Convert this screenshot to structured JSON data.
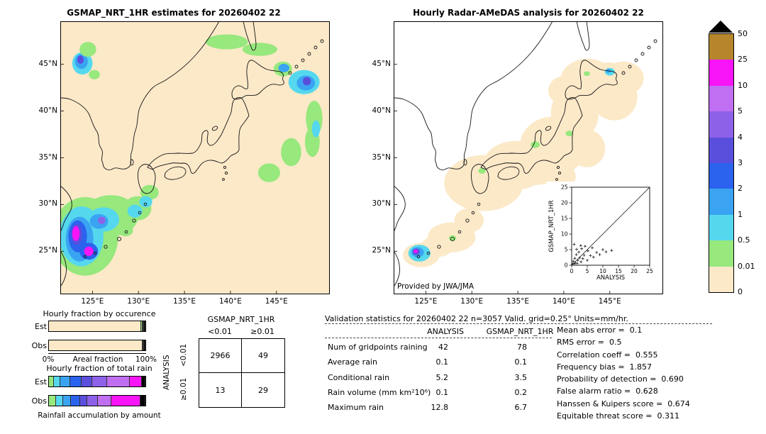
{
  "chart_data": [
    {
      "name": "gsmap_map",
      "type": "heatmap",
      "title": "GSMAP_NRT_1HR estimates for 20260402 22",
      "units": "mm/hr",
      "lon_range": [
        121.5,
        150.8
      ],
      "lat_range": [
        20.4,
        49.6
      ],
      "lat_ticks": [
        "45°N",
        "40°N",
        "35°N",
        "30°N",
        "25°N"
      ],
      "lat_tick_values": [
        45,
        40,
        35,
        30,
        25
      ],
      "lon_ticks": [
        "125°E",
        "130°E",
        "135°E",
        "140°E",
        "145°E"
      ],
      "lon_tick_values": [
        125,
        130,
        135,
        140,
        145
      ],
      "background_value_color": "#fce9c8",
      "cell_format": [
        "lon_deg",
        "lat_deg",
        "rx_deg",
        "ry_deg",
        "value_mm_hr"
      ],
      "cells": [
        [
          124.2,
          26.6,
          3.6,
          4.2,
          0.2
        ],
        [
          127.0,
          28.8,
          3.0,
          2.2,
          0.2
        ],
        [
          129.9,
          29.6,
          1.5,
          1.3,
          0.2
        ],
        [
          131.2,
          31.3,
          1.0,
          0.8,
          0.2
        ],
        [
          128.6,
          27.2,
          0.8,
          0.6,
          0.2
        ],
        [
          130.8,
          30.3,
          0.7,
          0.6,
          0.7
        ],
        [
          123.8,
          26.6,
          2.4,
          3.2,
          0.7
        ],
        [
          126.2,
          28.4,
          1.7,
          1.3,
          0.7
        ],
        [
          129.6,
          29.3,
          0.8,
          0.7,
          0.7
        ],
        [
          123.6,
          26.3,
          1.5,
          2.4,
          1.5
        ],
        [
          125.7,
          28.2,
          1.0,
          0.8,
          1.5
        ],
        [
          123.4,
          26.6,
          1.0,
          1.7,
          2.5
        ],
        [
          123.3,
          26.8,
          0.6,
          1.1,
          3.5
        ],
        [
          123.2,
          26.9,
          0.4,
          0.8,
          15
        ],
        [
          124.6,
          25.0,
          1.0,
          0.9,
          2.5
        ],
        [
          124.6,
          25.0,
          0.5,
          0.5,
          15
        ],
        [
          126.0,
          28.3,
          0.4,
          0.4,
          4.5
        ],
        [
          123.9,
          45.1,
          1.1,
          1.2,
          0.7
        ],
        [
          123.8,
          45.3,
          0.7,
          0.8,
          1.5
        ],
        [
          123.7,
          45.5,
          0.35,
          0.45,
          3.5
        ],
        [
          125.2,
          43.9,
          0.6,
          0.5,
          0.2
        ],
        [
          124.5,
          46.6,
          0.9,
          0.8,
          0.2
        ],
        [
          139.6,
          47.4,
          2.3,
          0.8,
          0.05
        ],
        [
          143.2,
          46.6,
          1.9,
          0.7,
          0.2
        ],
        [
          145.7,
          44.5,
          1.0,
          0.8,
          0.2
        ],
        [
          145.8,
          44.6,
          0.6,
          0.45,
          1.5
        ],
        [
          148.0,
          43.1,
          1.7,
          1.3,
          0.7
        ],
        [
          148.2,
          43.0,
          1.0,
          0.8,
          1.5
        ],
        [
          148.3,
          43.2,
          0.45,
          0.45,
          3.5
        ],
        [
          149.1,
          39.2,
          0.9,
          1.9,
          0.2
        ],
        [
          148.9,
          36.7,
          0.8,
          1.6,
          0.2
        ],
        [
          149.3,
          38.1,
          0.45,
          0.9,
          0.7
        ],
        [
          146.6,
          35.6,
          1.1,
          1.5,
          0.05
        ],
        [
          144.2,
          33.4,
          1.2,
          1.0,
          0.05
        ]
      ]
    },
    {
      "name": "radar_map",
      "type": "heatmap",
      "title": "Hourly Radar-AMeDAS analysis for 20260402 22",
      "credit": "Provided by JWA/JMA",
      "units": "mm/hr",
      "lon_range": [
        121.5,
        150.8
      ],
      "lat_range": [
        20.4,
        49.6
      ],
      "lat_ticks": [
        "45°N",
        "40°N",
        "35°N",
        "30°N",
        "25°N"
      ],
      "lat_tick_values": [
        45,
        40,
        35,
        30,
        25
      ],
      "lon_ticks": [
        "125°E",
        "130°E",
        "135°E",
        "140°E",
        "145°E"
      ],
      "lon_tick_values": [
        125,
        130,
        135,
        140,
        145
      ],
      "cell_format": [
        "lon_deg",
        "lat_deg",
        "rx_deg",
        "ry_deg",
        "value_mm_hr"
      ],
      "cells": [
        [
          131.3,
          32.3,
          4.3,
          3.0,
          0.005
        ],
        [
          134.8,
          34.2,
          3.6,
          2.6,
          0.005
        ],
        [
          138.8,
          36.2,
          3.6,
          3.2,
          0.005
        ],
        [
          141.2,
          39.8,
          2.6,
          3.0,
          0.005
        ],
        [
          142.6,
          43.2,
          3.0,
          2.4,
          0.005
        ],
        [
          140.3,
          42.2,
          2.0,
          1.6,
          0.005
        ],
        [
          127.8,
          26.5,
          2.6,
          1.6,
          0.005
        ],
        [
          124.5,
          24.6,
          2.0,
          1.3,
          0.005
        ],
        [
          129.7,
          28.3,
          1.6,
          1.3,
          0.005
        ],
        [
          137.0,
          33.9,
          2.6,
          1.8,
          0.005
        ],
        [
          132.9,
          33.0,
          2.8,
          1.9,
          0.005
        ],
        [
          144.9,
          43.6,
          2.2,
          1.6,
          0.005
        ],
        [
          126.2,
          25.5,
          1.8,
          1.1,
          0.005
        ],
        [
          145.5,
          41.5,
          2.5,
          2.5,
          0.005
        ],
        [
          146.5,
          43.5,
          2.2,
          1.8,
          0.005
        ],
        [
          142.5,
          36.0,
          2.0,
          2.0,
          0.005
        ],
        [
          139.5,
          33.0,
          1.8,
          1.5,
          0.005
        ],
        [
          124.3,
          24.8,
          1.2,
          0.9,
          0.7
        ],
        [
          124.1,
          24.9,
          0.7,
          0.55,
          1.5
        ],
        [
          123.95,
          24.95,
          0.4,
          0.35,
          3.5
        ],
        [
          123.9,
          25.0,
          0.22,
          0.2,
          15
        ],
        [
          127.9,
          26.4,
          0.4,
          0.3,
          0.2
        ],
        [
          131.1,
          33.6,
          0.4,
          0.3,
          0.2
        ],
        [
          136.9,
          36.4,
          0.5,
          0.35,
          0.2
        ],
        [
          145.0,
          44.2,
          0.55,
          0.4,
          0.7
        ],
        [
          144.85,
          44.3,
          0.28,
          0.22,
          1.5
        ],
        [
          140.6,
          37.6,
          0.4,
          0.3,
          0.2
        ],
        [
          142.5,
          44.0,
          0.35,
          0.25,
          0.2
        ]
      ]
    },
    {
      "name": "colorbar",
      "type": "scale",
      "units": "mm/hr",
      "thresholds": [
        0,
        0.01,
        0.5,
        1,
        2,
        3,
        4,
        5,
        10,
        25,
        50
      ],
      "colors": [
        "#fce9c8",
        "#97e87d",
        "#55d8ee",
        "#3aa4f2",
        "#2b62ee",
        "#5a4fdd",
        "#8e62e8",
        "#c06ef2",
        "#f714f7",
        "#b5862c",
        "#000000"
      ],
      "tick_labels_top_to_bottom": [
        "50",
        "25",
        "10",
        "5",
        "4",
        "3",
        "2",
        "1",
        "0.5",
        "0.01",
        "0"
      ],
      "overflow_color": "#000000"
    },
    {
      "name": "occurrence",
      "type": "bar",
      "stacked": true,
      "orientation": "horizontal",
      "title": "Hourly fraction by occurence",
      "categories": [
        "Est",
        "Obs"
      ],
      "xlabel": "Areal fraction",
      "xlim": [
        "0%",
        "100%"
      ],
      "segment_format": {
        "v": "class_value_mm_hr",
        "f": "fraction"
      },
      "series": [
        {
          "name": "Est",
          "segments": [
            {
              "v": 0.005,
              "f": 0.956
            },
            {
              "v": 0.2,
              "f": 0.012
            },
            {
              "v": 0.7,
              "f": 0.008
            },
            {
              "v": 1.5,
              "f": 0.006
            },
            {
              "v": 2.5,
              "f": 0.005
            },
            {
              "v": 60,
              "f": 0.013
            }
          ]
        },
        {
          "name": "Obs",
          "segments": [
            {
              "v": 0.005,
              "f": 0.968
            },
            {
              "v": 0.2,
              "f": 0.01
            },
            {
              "v": 0.7,
              "f": 0.005
            },
            {
              "v": 2.5,
              "f": 0.004
            },
            {
              "v": 60,
              "f": 0.013
            }
          ]
        }
      ]
    },
    {
      "name": "total_rain",
      "type": "bar",
      "stacked": true,
      "orientation": "horizontal",
      "title": "Hourly fraction of total rain",
      "footer": "Rainfall accumulation by amount",
      "categories": [
        "Est",
        "Obs"
      ],
      "series": [
        {
          "name": "Est",
          "segments": [
            {
              "v": 0.2,
              "f": 0.05
            },
            {
              "v": 0.7,
              "f": 0.07
            },
            {
              "v": 1.5,
              "f": 0.1
            },
            {
              "v": 2.5,
              "f": 0.12
            },
            {
              "v": 3.5,
              "f": 0.11
            },
            {
              "v": 4.5,
              "f": 0.15
            },
            {
              "v": 7,
              "f": 0.24
            },
            {
              "v": 15,
              "f": 0.12
            },
            {
              "v": 60,
              "f": 0.04
            }
          ]
        },
        {
          "name": "Obs",
          "segments": [
            {
              "v": 0.2,
              "f": 0.07
            },
            {
              "v": 0.7,
              "f": 0.08
            },
            {
              "v": 1.5,
              "f": 0.08
            },
            {
              "v": 2.5,
              "f": 0.09
            },
            {
              "v": 3.5,
              "f": 0.08
            },
            {
              "v": 4.5,
              "f": 0.11
            },
            {
              "v": 7,
              "f": 0.14
            },
            {
              "v": 15,
              "f": 0.3
            },
            {
              "v": 60,
              "f": 0.05
            }
          ]
        }
      ]
    },
    {
      "name": "contingency",
      "type": "table",
      "title": "GSMAP_NRT_1HR",
      "row_axis": "ANALYSIS",
      "col_labels": [
        "<0.01",
        "≥0.01"
      ],
      "row_labels": [
        "<0.01",
        "≥0.01"
      ],
      "values": [
        [
          "2966",
          "49"
        ],
        [
          "13",
          "29"
        ]
      ]
    },
    {
      "name": "inset_scatter",
      "type": "scatter",
      "xlabel": "ANALYSIS",
      "ylabel": "GSMAP_NRT_1HR",
      "xlim": [
        0,
        25
      ],
      "ylim": [
        0,
        25
      ],
      "ticks": [
        0,
        5,
        10,
        15,
        20,
        25
      ],
      "points": [
        [
          0.3,
          0.4
        ],
        [
          0.5,
          1.3
        ],
        [
          0.8,
          0.5
        ],
        [
          1,
          2.2
        ],
        [
          1.2,
          0.7
        ],
        [
          1.5,
          3.4
        ],
        [
          1.8,
          0.6
        ],
        [
          2,
          1.6
        ],
        [
          2.3,
          4.2
        ],
        [
          2.6,
          2.4
        ],
        [
          3,
          1.1
        ],
        [
          3.2,
          5.3
        ],
        [
          3.6,
          2.1
        ],
        [
          4,
          3.2
        ],
        [
          4.3,
          6.1
        ],
        [
          5,
          1.6
        ],
        [
          5.2,
          4.6
        ],
        [
          6,
          3.1
        ],
        [
          6.6,
          5.6
        ],
        [
          7,
          2.6
        ],
        [
          8,
          4.1
        ],
        [
          9,
          3.4
        ],
        [
          10,
          5
        ],
        [
          11,
          4.3
        ],
        [
          12.8,
          4.7
        ],
        [
          0.8,
          6.7
        ],
        [
          1.6,
          5.1
        ],
        [
          2.9,
          6.3
        ]
      ]
    },
    {
      "name": "validation_stats",
      "type": "table",
      "title": "Validation statistics for 20260402 22  n=3057 Valid. grid=0.25° Units=mm/hr.",
      "col_headers": [
        "ANALYSIS",
        "GSMAP_NRT_1HR"
      ],
      "rows": [
        {
          "label": "Num of gridpoints raining",
          "analysis": "42",
          "gsmap": "78"
        },
        {
          "label": "Average rain",
          "analysis": "0.1",
          "gsmap": "0.1"
        },
        {
          "label": "Conditional rain",
          "analysis": "5.2",
          "gsmap": "3.5"
        },
        {
          "label": "Rain volume (mm km²10⁶)",
          "analysis": "0.1",
          "gsmap": "0.2"
        },
        {
          "label": "Maximum rain",
          "analysis": "12.8",
          "gsmap": "6.7"
        }
      ],
      "metrics": [
        {
          "label": "Mean abs error =",
          "value": "0.1"
        },
        {
          "label": "RMS error =",
          "value": "0.5"
        },
        {
          "label": "Correlation coeff =",
          "value": "0.555"
        },
        {
          "label": "Frequency bias =",
          "value": "1.857"
        },
        {
          "label": "Probability of detection =",
          "value": "0.690"
        },
        {
          "label": "False alarm ratio =",
          "value": "0.628"
        },
        {
          "label": "Hanssen & Kuipers score =",
          "value": "0.674"
        },
        {
          "label": "Equitable threat score =",
          "value": "0.311"
        }
      ]
    }
  ]
}
